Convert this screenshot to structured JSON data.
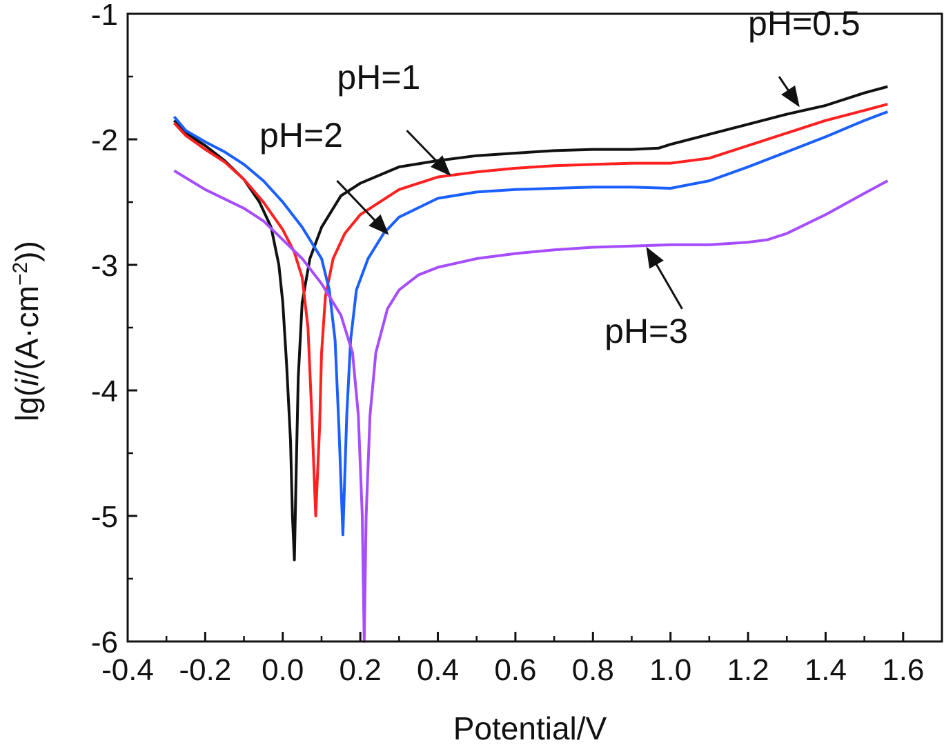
{
  "chart_data": {
    "type": "line",
    "title": "",
    "xlabel": "Potential/V",
    "ylabel_parts": [
      "lg(",
      "i",
      "/(A·cm",
      "−2",
      "))"
    ],
    "xlim": [
      -0.4,
      1.7
    ],
    "ylim": [
      -6,
      -1
    ],
    "xticks": [
      -0.4,
      -0.2,
      0.0,
      0.2,
      0.4,
      0.6,
      0.8,
      1.0,
      1.2,
      1.4,
      1.6
    ],
    "xtick_labels": [
      "-0.4",
      "-0.2",
      "0.0",
      "0.2",
      "0.4",
      "0.6",
      "0.8",
      "1.0",
      "1.2",
      "1.4",
      "1.6"
    ],
    "yticks": [
      -1,
      -2,
      -3,
      -4,
      -5,
      -6
    ],
    "ytick_labels": [
      "-1",
      "-2",
      "-3",
      "-4",
      "-5",
      "-6"
    ],
    "grid": false,
    "legend": "none",
    "series": [
      {
        "name": "pH=0.5",
        "color": "#111111",
        "points": [
          [
            -0.28,
            -1.85
          ],
          [
            -0.25,
            -1.95
          ],
          [
            -0.2,
            -2.05
          ],
          [
            -0.15,
            -2.17
          ],
          [
            -0.1,
            -2.32
          ],
          [
            -0.06,
            -2.5
          ],
          [
            -0.03,
            -2.7
          ],
          [
            -0.01,
            -3.0
          ],
          [
            0.0,
            -3.3
          ],
          [
            0.01,
            -3.8
          ],
          [
            0.02,
            -4.4
          ],
          [
            0.025,
            -5.0
          ],
          [
            0.03,
            -5.35
          ],
          [
            0.035,
            -4.6
          ],
          [
            0.04,
            -3.9
          ],
          [
            0.05,
            -3.3
          ],
          [
            0.07,
            -2.95
          ],
          [
            0.1,
            -2.7
          ],
          [
            0.15,
            -2.45
          ],
          [
            0.2,
            -2.35
          ],
          [
            0.3,
            -2.22
          ],
          [
            0.4,
            -2.17
          ],
          [
            0.5,
            -2.13
          ],
          [
            0.6,
            -2.11
          ],
          [
            0.7,
            -2.09
          ],
          [
            0.8,
            -2.08
          ],
          [
            0.9,
            -2.08
          ],
          [
            0.97,
            -2.07
          ],
          [
            1.0,
            -2.04
          ],
          [
            1.1,
            -1.96
          ],
          [
            1.2,
            -1.88
          ],
          [
            1.3,
            -1.8
          ],
          [
            1.4,
            -1.73
          ],
          [
            1.5,
            -1.63
          ],
          [
            1.56,
            -1.58
          ]
        ]
      },
      {
        "name": "pH=1",
        "color": "#ff2020",
        "points": [
          [
            -0.28,
            -1.87
          ],
          [
            -0.25,
            -1.97
          ],
          [
            -0.2,
            -2.08
          ],
          [
            -0.15,
            -2.18
          ],
          [
            -0.1,
            -2.32
          ],
          [
            -0.05,
            -2.5
          ],
          [
            0.0,
            -2.72
          ],
          [
            0.03,
            -2.9
          ],
          [
            0.05,
            -3.1
          ],
          [
            0.065,
            -3.5
          ],
          [
            0.075,
            -4.2
          ],
          [
            0.085,
            -5.0
          ],
          [
            0.095,
            -4.3
          ],
          [
            0.1,
            -3.7
          ],
          [
            0.11,
            -3.25
          ],
          [
            0.13,
            -2.95
          ],
          [
            0.16,
            -2.75
          ],
          [
            0.2,
            -2.6
          ],
          [
            0.3,
            -2.4
          ],
          [
            0.4,
            -2.3
          ],
          [
            0.5,
            -2.26
          ],
          [
            0.6,
            -2.23
          ],
          [
            0.7,
            -2.21
          ],
          [
            0.8,
            -2.2
          ],
          [
            0.9,
            -2.19
          ],
          [
            1.0,
            -2.19
          ],
          [
            1.1,
            -2.15
          ],
          [
            1.2,
            -2.05
          ],
          [
            1.3,
            -1.95
          ],
          [
            1.4,
            -1.85
          ],
          [
            1.5,
            -1.77
          ],
          [
            1.56,
            -1.72
          ]
        ]
      },
      {
        "name": "pH=2",
        "color": "#1a5fff",
        "points": [
          [
            -0.28,
            -1.82
          ],
          [
            -0.25,
            -1.93
          ],
          [
            -0.2,
            -2.02
          ],
          [
            -0.15,
            -2.1
          ],
          [
            -0.1,
            -2.2
          ],
          [
            -0.05,
            -2.33
          ],
          [
            0.0,
            -2.5
          ],
          [
            0.05,
            -2.7
          ],
          [
            0.1,
            -2.95
          ],
          [
            0.12,
            -3.2
          ],
          [
            0.135,
            -3.6
          ],
          [
            0.145,
            -4.3
          ],
          [
            0.155,
            -5.15
          ],
          [
            0.165,
            -4.2
          ],
          [
            0.175,
            -3.6
          ],
          [
            0.19,
            -3.2
          ],
          [
            0.22,
            -2.95
          ],
          [
            0.26,
            -2.75
          ],
          [
            0.3,
            -2.62
          ],
          [
            0.4,
            -2.47
          ],
          [
            0.5,
            -2.42
          ],
          [
            0.6,
            -2.4
          ],
          [
            0.7,
            -2.39
          ],
          [
            0.8,
            -2.38
          ],
          [
            0.9,
            -2.38
          ],
          [
            1.0,
            -2.39
          ],
          [
            1.1,
            -2.33
          ],
          [
            1.2,
            -2.22
          ],
          [
            1.3,
            -2.1
          ],
          [
            1.4,
            -1.98
          ],
          [
            1.5,
            -1.85
          ],
          [
            1.56,
            -1.78
          ]
        ]
      },
      {
        "name": "pH=3",
        "color": "#a64dff",
        "points": [
          [
            -0.28,
            -2.25
          ],
          [
            -0.2,
            -2.4
          ],
          [
            -0.1,
            -2.55
          ],
          [
            -0.05,
            -2.65
          ],
          [
            0.0,
            -2.8
          ],
          [
            0.05,
            -2.95
          ],
          [
            0.1,
            -3.15
          ],
          [
            0.15,
            -3.4
          ],
          [
            0.18,
            -3.7
          ],
          [
            0.195,
            -4.2
          ],
          [
            0.205,
            -5.0
          ],
          [
            0.21,
            -6.0
          ],
          [
            0.215,
            -5.0
          ],
          [
            0.225,
            -4.2
          ],
          [
            0.24,
            -3.7
          ],
          [
            0.27,
            -3.35
          ],
          [
            0.3,
            -3.2
          ],
          [
            0.35,
            -3.08
          ],
          [
            0.4,
            -3.02
          ],
          [
            0.5,
            -2.95
          ],
          [
            0.6,
            -2.91
          ],
          [
            0.7,
            -2.88
          ],
          [
            0.8,
            -2.86
          ],
          [
            0.9,
            -2.85
          ],
          [
            1.0,
            -2.84
          ],
          [
            1.1,
            -2.84
          ],
          [
            1.2,
            -2.82
          ],
          [
            1.25,
            -2.8
          ],
          [
            1.3,
            -2.75
          ],
          [
            1.4,
            -2.6
          ],
          [
            1.5,
            -2.43
          ],
          [
            1.56,
            -2.33
          ]
        ]
      }
    ],
    "annotations": [
      {
        "text": "pH=0.5",
        "x": 1.2,
        "y": -1.17,
        "arrow_from": [
          1.28,
          -1.5
        ],
        "arrow_to": [
          1.33,
          -1.73
        ]
      },
      {
        "text": "pH=1",
        "x": 0.14,
        "y": -1.6,
        "arrow_from": [
          0.32,
          -1.93
        ],
        "arrow_to": [
          0.43,
          -2.28
        ]
      },
      {
        "text": "pH=2",
        "x": -0.06,
        "y": -2.06,
        "arrow_from": [
          0.14,
          -2.33
        ],
        "arrow_to": [
          0.27,
          -2.75
        ]
      },
      {
        "text": "pH=3",
        "x": 0.83,
        "y": -3.62,
        "arrow_from": [
          1.03,
          -3.35
        ],
        "arrow_to": [
          0.94,
          -2.87
        ]
      }
    ]
  }
}
